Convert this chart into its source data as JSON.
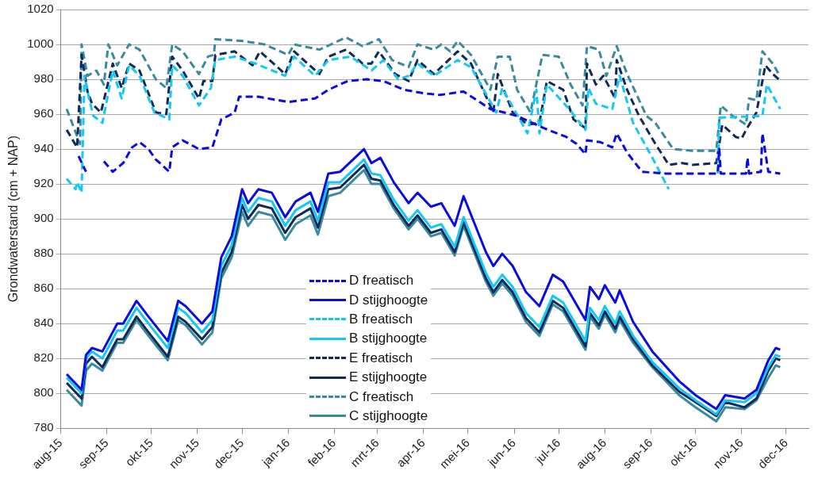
{
  "chart_data": {
    "type": "line",
    "ylabel": "Grondwaterstand (cm + NAP)",
    "grid": "y",
    "legend": "bottom",
    "xlim": [
      "2015-08-01",
      "2016-12-16"
    ],
    "xticks": [
      {
        "value": "2015-08-01",
        "label": "aug-15"
      },
      {
        "value": "2015-09-01",
        "label": "sep-15"
      },
      {
        "value": "2015-10-01",
        "label": "okt-15"
      },
      {
        "value": "2015-11-01",
        "label": "nov-15"
      },
      {
        "value": "2015-12-01",
        "label": "dec-15"
      },
      {
        "value": "2016-01-01",
        "label": "jan-16"
      },
      {
        "value": "2016-02-01",
        "label": "feb-16"
      },
      {
        "value": "2016-03-01",
        "label": "mrt-16"
      },
      {
        "value": "2016-04-01",
        "label": "apr-16"
      },
      {
        "value": "2016-05-01",
        "label": "mei-16"
      },
      {
        "value": "2016-06-01",
        "label": "jun-16"
      },
      {
        "value": "2016-07-01",
        "label": "jul-16"
      },
      {
        "value": "2016-08-01",
        "label": "aug-16"
      },
      {
        "value": "2016-09-01",
        "label": "sep-16"
      },
      {
        "value": "2016-10-01",
        "label": "okt-16"
      },
      {
        "value": "2016-11-01",
        "label": "nov-16"
      },
      {
        "value": "2016-12-01",
        "label": "dec-16"
      }
    ],
    "ylim": [
      780,
      1020
    ],
    "yticks": [
      780,
      800,
      820,
      840,
      860,
      880,
      900,
      920,
      940,
      960,
      980,
      1000,
      1020
    ],
    "x": [
      "2015-08-05",
      "2015-08-15",
      "2015-08-18",
      "2015-08-22",
      "2015-08-29",
      "2015-09-08",
      "2015-09-12",
      "2015-09-21",
      "2015-09-29",
      "2015-10-12",
      "2015-10-19",
      "2015-10-24",
      "2015-11-04",
      "2015-11-11",
      "2015-11-17",
      "2015-11-24",
      "2015-12-01",
      "2015-12-05",
      "2015-12-12",
      "2015-12-21",
      "2015-12-30",
      "2016-01-06",
      "2016-01-16",
      "2016-01-21",
      "2016-01-28",
      "2016-02-05",
      "2016-02-21",
      "2016-02-26",
      "2016-03-03",
      "2016-03-12",
      "2016-03-22",
      "2016-03-28",
      "2016-04-06",
      "2016-04-13",
      "2016-04-22",
      "2016-04-28",
      "2016-05-13",
      "2016-05-18",
      "2016-05-24",
      "2016-05-31",
      "2016-06-09",
      "2016-06-18",
      "2016-06-27",
      "2016-07-04",
      "2016-07-19",
      "2016-07-22",
      "2016-07-28",
      "2016-08-01",
      "2016-08-08",
      "2016-08-11",
      "2016-08-20",
      "2016-09-02",
      "2016-09-20",
      "2016-10-01",
      "2016-10-15",
      "2016-10-21",
      "2016-11-03",
      "2016-11-11",
      "2016-11-19",
      "2016-11-24",
      "2016-11-27"
    ],
    "series": [
      {
        "name": "D freatisch",
        "color": "#0a0ae6",
        "line_style": "dashed",
        "x": [
          "2015-08-13",
          "2015-08-18",
          "2015-08-23",
          "2015-08-30",
          "2015-09-05",
          "2015-09-12",
          "2015-09-18",
          "2015-09-23",
          "2015-09-29",
          "2015-10-04",
          "2015-10-08",
          "2015-10-13",
          "2015-10-15",
          "2015-10-22",
          "2015-11-02",
          "2015-11-11",
          "2015-11-17",
          "2015-11-26",
          "2015-11-29",
          "2015-12-12",
          "2016-01-01",
          "2016-01-19",
          "2016-01-28",
          "2016-02-10",
          "2016-02-23",
          "2016-03-05",
          "2016-03-19",
          "2016-04-01",
          "2016-04-12",
          "2016-04-28",
          "2016-05-16",
          "2016-06-03",
          "2016-06-21",
          "2016-07-06",
          "2016-07-13",
          "2016-07-19",
          "2016-07-20",
          "2016-07-29",
          "2016-08-06",
          "2016-08-09",
          "2016-08-16",
          "2016-08-26",
          "2016-09-11",
          "2016-10-16",
          "2016-10-17",
          "2016-10-18",
          "2016-11-04",
          "2016-11-05",
          "2016-11-06",
          "2016-11-14",
          "2016-11-15",
          "2016-11-19",
          "2016-11-27"
        ],
        "values": [
          936,
          927,
          null,
          933,
          927,
          932,
          941,
          944,
          940,
          934,
          931,
          927,
          941,
          945,
          940,
          941,
          957,
          961,
          970,
          970,
          967,
          969,
          974,
          979,
          980,
          979,
          974,
          972,
          971,
          973,
          963,
          959,
          952,
          947,
          943,
          937,
          945,
          944,
          941,
          949,
          938,
          927,
          926,
          926,
          940,
          926,
          926,
          935,
          926,
          927,
          949,
          927,
          926
        ]
      },
      {
        "name": "D stijghoogte",
        "color": "#0a0ae6",
        "line_style": "solid",
        "values": [
          811,
          802,
          822,
          826,
          824,
          840,
          840,
          853,
          844,
          830,
          853,
          850,
          840,
          847,
          878,
          890,
          917,
          909,
          917,
          915,
          901,
          910,
          915,
          904,
          926,
          927,
          940,
          932,
          935,
          921,
          909,
          915,
          907,
          909,
          896,
          913,
          881,
          873,
          880,
          873,
          858,
          850,
          868,
          864,
          842,
          861,
          854,
          862,
          852,
          859,
          841,
          824,
          807,
          799,
          791,
          799,
          797,
          802,
          819,
          826,
          825
        ]
      },
      {
        "name": "B freatisch",
        "color": "#14c8f5",
        "line_style": "dashed",
        "x": [
          "2015-08-05",
          "2015-08-11",
          "2015-08-12",
          "2015-08-15",
          "2015-08-17",
          "2015-08-20",
          "2015-08-23",
          "2015-08-29",
          "2015-09-05",
          "2015-09-11",
          "2015-09-16",
          "2015-09-23",
          "2015-10-03",
          "2015-10-13",
          "2015-10-15",
          "2015-10-22",
          "2015-11-02",
          "2015-11-10",
          "2015-11-13",
          "2015-11-26",
          "2015-12-10",
          "2015-12-30",
          "2016-01-05",
          "2016-01-19",
          "2016-01-28",
          "2016-02-12",
          "2016-02-26",
          "2016-03-05",
          "2016-03-15",
          "2016-03-22",
          "2016-03-28",
          "2016-04-08",
          "2016-04-24",
          "2016-05-03",
          "2016-05-20",
          "2016-05-24",
          "2016-06-10",
          "2016-06-16",
          "2016-06-18",
          "2016-06-23",
          "2016-07-08",
          "2016-07-19",
          "2016-07-21",
          "2016-07-26",
          "2016-08-06",
          "2016-08-11",
          "2016-08-20",
          "2016-09-02",
          "2016-09-13",
          "2016-10-01",
          "2016-10-16",
          "2016-10-17",
          "2016-11-15",
          "2016-11-18",
          "2016-11-27"
        ],
        "values": [
          923,
          917,
          921,
          915,
          982,
          969,
          959,
          955,
          985,
          969,
          988,
          982,
          961,
          957,
          988,
          982,
          965,
          975,
          991,
          993,
          989,
          982,
          993,
          982,
          991,
          993,
          985,
          991,
          980,
          982,
          989,
          982,
          991,
          987,
          961,
          975,
          949,
          974,
          949,
          977,
          963,
          951,
          975,
          966,
          963,
          982,
          955,
          935,
          917,
          null,
          926,
          958,
          959,
          977,
          963
        ]
      },
      {
        "name": "B stijghoogte",
        "color": "#14c8f5",
        "line_style": "solid",
        "values": [
          809,
          800,
          820,
          824,
          820,
          836,
          836,
          849,
          840,
          826,
          849,
          846,
          835,
          842,
          873,
          885,
          912,
          904,
          912,
          910,
          896,
          905,
          910,
          899,
          921,
          921,
          934,
          926,
          925,
          911,
          899,
          905,
          895,
          897,
          884,
          901,
          869,
          861,
          868,
          861,
          846,
          838,
          856,
          852,
          830,
          849,
          842,
          850,
          840,
          847,
          833,
          818,
          803,
          796,
          788,
          796,
          795,
          800,
          815,
          822,
          821
        ]
      },
      {
        "name": "E freatisch",
        "color": "#0f2a5a",
        "line_style": "dashed",
        "x": [
          "2015-08-05",
          "2015-08-12",
          "2015-08-15",
          "2015-08-19",
          "2015-08-22",
          "2015-08-28",
          "2015-09-05",
          "2015-09-11",
          "2015-09-16",
          "2015-09-23",
          "2015-10-04",
          "2015-10-11",
          "2015-10-15",
          "2015-10-22",
          "2015-11-02",
          "2015-11-05",
          "2015-11-11",
          "2015-11-13",
          "2015-11-26",
          "2015-12-08",
          "2015-12-13",
          "2015-12-30",
          "2016-01-05",
          "2016-01-22",
          "2016-01-28",
          "2016-02-09",
          "2016-02-20",
          "2016-02-26",
          "2016-03-02",
          "2016-03-13",
          "2016-03-22",
          "2016-03-28",
          "2016-04-08",
          "2016-04-24",
          "2016-05-03",
          "2016-05-18",
          "2016-05-21",
          "2016-05-31",
          "2016-06-10",
          "2016-06-18",
          "2016-06-23",
          "2016-07-04",
          "2016-07-11",
          "2016-07-19",
          "2016-07-20",
          "2016-07-26",
          "2016-07-31",
          "2016-08-08",
          "2016-08-09",
          "2016-08-16",
          "2016-08-24",
          "2016-09-04",
          "2016-09-13",
          "2016-09-22",
          "2016-09-29",
          "2016-10-15",
          "2016-10-19",
          "2016-10-28",
          "2016-11-01",
          "2016-11-04",
          "2016-11-11",
          "2016-11-17",
          "2016-11-22",
          "2016-11-26"
        ],
        "values": [
          951,
          941,
          994,
          973,
          966,
          961,
          989,
          975,
          989,
          985,
          961,
          960,
          993,
          985,
          969,
          979,
          979,
          994,
          996,
          988,
          996,
          983,
          996,
          983,
          993,
          997,
          989,
          989,
          996,
          983,
          979,
          991,
          983,
          996,
          989,
          961,
          983,
          961,
          954,
          955,
          979,
          974,
          957,
          952,
          989,
          977,
          982,
          969,
          991,
          974,
          959,
          943,
          931,
          932,
          931,
          932,
          954,
          947,
          946,
          951,
          961,
          988,
          983,
          980
        ]
      },
      {
        "name": "E stijghoogte",
        "color": "#0f2a5a",
        "line_style": "solid",
        "values": [
          806,
          797,
          817,
          821,
          815,
          831,
          831,
          844,
          835,
          821,
          844,
          841,
          831,
          838,
          869,
          881,
          908,
          900,
          908,
          906,
          892,
          901,
          906,
          895,
          917,
          918,
          931,
          923,
          922,
          908,
          896,
          902,
          892,
          894,
          881,
          898,
          866,
          858,
          865,
          858,
          843,
          835,
          853,
          849,
          827,
          846,
          839,
          847,
          837,
          844,
          831,
          816,
          801,
          795,
          787,
          795,
          792,
          797,
          813,
          820,
          819
        ]
      },
      {
        "name": "C freatisch",
        "color": "#3a8a9e",
        "line_style": "dashed",
        "x": [
          "2015-08-05",
          "2015-08-14",
          "2015-08-15",
          "2015-08-19",
          "2015-08-25",
          "2015-08-30",
          "2015-09-02",
          "2015-09-08",
          "2015-09-16",
          "2015-09-23",
          "2015-10-04",
          "2015-10-11",
          "2015-10-15",
          "2015-10-22",
          "2015-11-02",
          "2015-11-08",
          "2015-11-12",
          "2015-11-13",
          "2015-12-01",
          "2015-12-16",
          "2016-01-01",
          "2016-01-05",
          "2016-01-22",
          "2016-02-09",
          "2016-02-20",
          "2016-03-02",
          "2016-03-11",
          "2016-03-22",
          "2016-03-28",
          "2016-04-08",
          "2016-04-13",
          "2016-04-19",
          "2016-04-24",
          "2016-05-03",
          "2016-05-16",
          "2016-05-21",
          "2016-05-29",
          "2016-06-03",
          "2016-06-12",
          "2016-06-20",
          "2016-07-01",
          "2016-07-09",
          "2016-07-17",
          "2016-07-20",
          "2016-07-28",
          "2016-08-02",
          "2016-08-09",
          "2016-08-16",
          "2016-08-29",
          "2016-09-04",
          "2016-09-16",
          "2016-09-29",
          "2016-10-15",
          "2016-10-18",
          "2016-10-26",
          "2016-11-04",
          "2016-11-06",
          "2016-11-11",
          "2016-11-15",
          "2016-11-22",
          "2016-11-26"
        ],
        "values": [
          963,
          943,
          1000,
          982,
          985,
          977,
          1000,
          988,
          1000,
          997,
          980,
          975,
          1000,
          996,
          983,
          993,
          994,
          1003,
          1002,
          1000,
          994,
          1000,
          997,
          1004,
          999,
          1003,
          991,
          987,
          1000,
          997,
          1000,
          996,
          1002,
          994,
          974,
          993,
          993,
          974,
          961,
          994,
          993,
          977,
          965,
          999,
          997,
          982,
          999,
          983,
          959,
          955,
          940,
          939,
          939,
          965,
          959,
          954,
          969,
          968,
          996,
          989,
          983
        ]
      },
      {
        "name": "C stijghoogte",
        "color": "#3a8a9e",
        "line_style": "solid",
        "values": [
          802,
          793,
          813,
          817,
          813,
          829,
          829,
          842,
          833,
          819,
          842,
          839,
          828,
          835,
          866,
          878,
          904,
          896,
          904,
          902,
          888,
          897,
          902,
          891,
          913,
          915,
          928,
          920,
          920,
          906,
          894,
          900,
          890,
          892,
          879,
          896,
          864,
          856,
          863,
          856,
          841,
          833,
          851,
          847,
          825,
          844,
          837,
          845,
          835,
          842,
          829,
          815,
          799,
          792,
          784,
          792,
          791,
          796,
          809,
          816,
          815
        ]
      }
    ]
  }
}
